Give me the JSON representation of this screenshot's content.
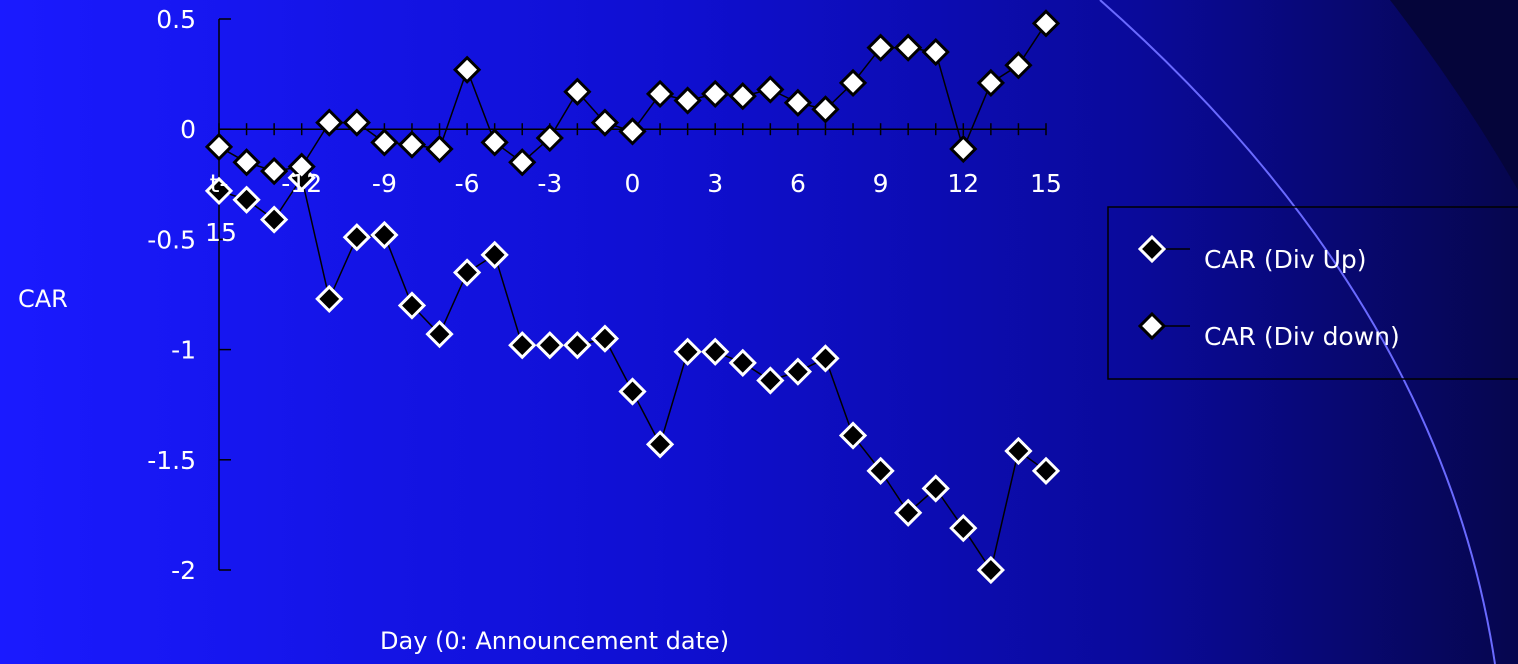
{
  "chart_data": {
    "type": "line",
    "xlabel": "Day (0: Announcement date)",
    "ylabel": "CAR",
    "ylim": [
      -2,
      0.5
    ],
    "yticks": [
      "0.5",
      "0",
      "-0.5",
      "-1",
      "-1.5",
      "-2"
    ],
    "yticks_values": [
      0.5,
      0,
      -0.5,
      -1,
      -1.5,
      -2
    ],
    "xlim": [
      -15,
      15
    ],
    "xtick_labels": [
      {
        "x": -15,
        "label": "t-"
      },
      {
        "x": -12,
        "label": "-12"
      },
      {
        "x": -9,
        "label": "-9"
      },
      {
        "x": -6,
        "label": "-6"
      },
      {
        "x": -3,
        "label": "-3"
      },
      {
        "x": 0,
        "label": "0"
      },
      {
        "x": 3,
        "label": "3"
      },
      {
        "x": 6,
        "label": "6"
      },
      {
        "x": 9,
        "label": "9"
      },
      {
        "x": 12,
        "label": "12"
      },
      {
        "x": 15,
        "label": "15"
      }
    ],
    "xtick_label_continuation": "15",
    "x": [
      -15,
      -14,
      -13,
      -12,
      -11,
      -10,
      -9,
      -8,
      -7,
      -6,
      -5,
      -4,
      -3,
      -2,
      -1,
      0,
      1,
      2,
      3,
      4,
      5,
      6,
      7,
      8,
      9,
      10,
      11,
      12,
      13,
      14,
      15
    ],
    "series": [
      {
        "name": "CAR (Div Up)",
        "marker_fill": "#000000",
        "values": [
          -0.28,
          -0.32,
          -0.41,
          -0.22,
          -0.77,
          -0.49,
          -0.48,
          -0.8,
          -0.93,
          -0.65,
          -0.57,
          -0.98,
          -0.98,
          -0.98,
          -0.95,
          -1.19,
          -1.43,
          -1.01,
          -1.01,
          -1.06,
          -1.14,
          -1.1,
          -1.04,
          -1.39,
          -1.55,
          -1.74,
          -1.63,
          -1.81,
          -2.0,
          -1.46,
          -1.55
        ]
      },
      {
        "name": "CAR (Div down)",
        "marker_fill": "#ffffff",
        "values": [
          -0.08,
          -0.15,
          -0.19,
          -0.17,
          0.03,
          0.03,
          -0.06,
          -0.07,
          -0.09,
          0.27,
          -0.06,
          -0.15,
          -0.04,
          0.17,
          0.03,
          -0.01,
          0.16,
          0.13,
          0.16,
          0.15,
          0.18,
          0.12,
          0.09,
          0.21,
          0.37,
          0.37,
          0.35,
          -0.09,
          0.21,
          0.29,
          0.48
        ]
      }
    ],
    "legend_position": "right",
    "grid": false
  },
  "colors": {
    "axis": "#000000",
    "text": "#ffffff",
    "line": "#000000",
    "accent_arc": "#4f4fff"
  }
}
